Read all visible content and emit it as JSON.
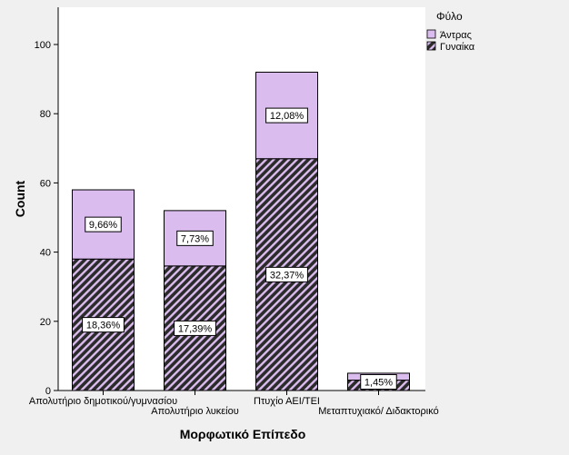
{
  "chart_data": {
    "type": "bar",
    "stacked": true,
    "xlabel": "Μορφωτικό Επίπεδο",
    "ylabel": "Count",
    "ylim": [
      0,
      100
    ],
    "yticks": [
      0,
      20,
      40,
      60,
      80,
      100
    ],
    "grid": false,
    "legend": {
      "title": "Φύλο",
      "position": "top-right",
      "entries": [
        "Άντρας",
        "Γυναίκα"
      ]
    },
    "categories": [
      "Απολυτήριο δημοτικού/γυμνασίου",
      "Απολυτήριο λυκείου",
      "Πτυχίο ΑΕΙ/ΤΕΙ",
      "Μεταπτυχιακό/ Διδακτορικό"
    ],
    "series": [
      {
        "name": "Γυναίκα",
        "fill": "hatched",
        "color": "#2b2b2b",
        "values": [
          38,
          36,
          67,
          3
        ],
        "labels": [
          "18,36%",
          "17,39%",
          "32,37%",
          "1,45%"
        ]
      },
      {
        "name": "Άντρας",
        "fill": "solid",
        "color": "#dbbcef",
        "values": [
          20,
          16,
          25,
          2
        ],
        "labels": [
          "9,66%",
          "7,73%",
          "12,08%",
          ""
        ]
      }
    ],
    "colors": {
      "frame": "#f0f0f0",
      "axis": "#000000",
      "male_fill": "#dbbcef",
      "female_fill": "#2b2b2b",
      "hatch_stripe": "#dbbcef"
    }
  }
}
